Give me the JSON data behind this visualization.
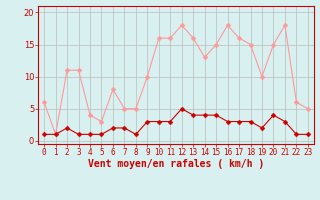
{
  "hours": [
    0,
    1,
    2,
    3,
    4,
    5,
    6,
    7,
    8,
    9,
    10,
    11,
    12,
    13,
    14,
    15,
    16,
    17,
    18,
    19,
    20,
    21,
    22,
    23
  ],
  "avg_wind": [
    1,
    1,
    2,
    1,
    1,
    1,
    2,
    2,
    1,
    3,
    3,
    3,
    5,
    4,
    4,
    4,
    3,
    3,
    3,
    2,
    4,
    3,
    1,
    1
  ],
  "gust_wind": [
    6,
    1,
    11,
    11,
    4,
    3,
    8,
    5,
    5,
    10,
    16,
    16,
    18,
    16,
    13,
    15,
    18,
    16,
    15,
    10,
    15,
    18,
    6,
    5
  ],
  "bg_color": "#d8f0f0",
  "grid_color": "#bbbbbb",
  "avg_color": "#cc0000",
  "gust_color": "#ff9999",
  "xlabel": "Vent moyen/en rafales ( km/h )",
  "xlabel_color": "#cc0000",
  "yticks": [
    0,
    5,
    10,
    15,
    20
  ],
  "ylim": [
    -0.5,
    21
  ],
  "xlim": [
    -0.5,
    23.5
  ],
  "tick_color": "#cc0000",
  "markersize": 2.5,
  "linewidth": 0.8,
  "xlabel_fontsize": 7,
  "tick_fontsize": 5.5,
  "ytick_fontsize": 6
}
